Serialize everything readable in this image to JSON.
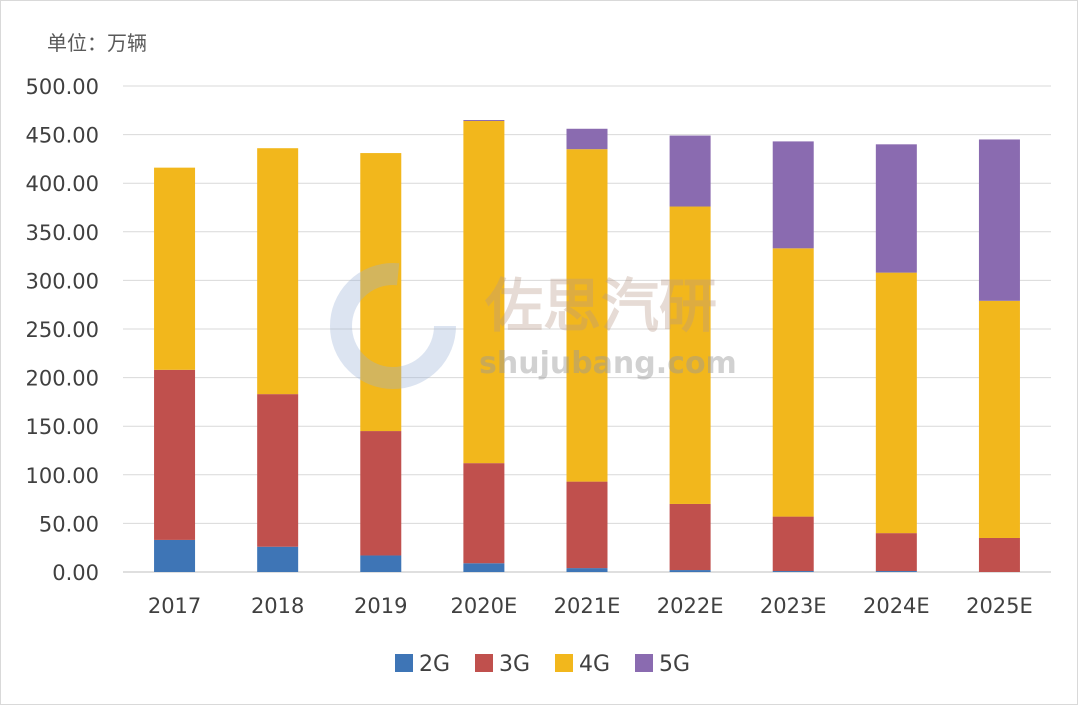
{
  "unit_label": "单位：万辆",
  "watermark": {
    "brand": "佐思汽研",
    "site": "shujubang.com"
  },
  "colors": {
    "2G": "#3e75b6",
    "3G": "#c0504d",
    "4G": "#f2b71c",
    "5G": "#8a6bb0",
    "grid": "#d9d9d9",
    "axis": "#bfbfbf"
  },
  "chart_data": {
    "type": "bar",
    "stacked": true,
    "categories": [
      "2017",
      "2018",
      "2019",
      "2020E",
      "2021E",
      "2022E",
      "2023E",
      "2024E",
      "2025E"
    ],
    "series": [
      {
        "name": "2G",
        "values": [
          33,
          26,
          17,
          9,
          4,
          2,
          1,
          1,
          0
        ]
      },
      {
        "name": "3G",
        "values": [
          175,
          157,
          128,
          103,
          89,
          68,
          56,
          39,
          35
        ]
      },
      {
        "name": "4G",
        "values": [
          208,
          253,
          286,
          352,
          342,
          306,
          276,
          268,
          244
        ]
      },
      {
        "name": "5G",
        "values": [
          0,
          0,
          0,
          1,
          21,
          73,
          110,
          132,
          166
        ]
      }
    ],
    "y_ticks": [
      "0.00",
      "50.00",
      "100.00",
      "150.00",
      "200.00",
      "250.00",
      "300.00",
      "350.00",
      "400.00",
      "450.00",
      "500.00"
    ],
    "ylim": [
      0,
      500
    ],
    "grid": true,
    "legend_position": "bottom"
  }
}
